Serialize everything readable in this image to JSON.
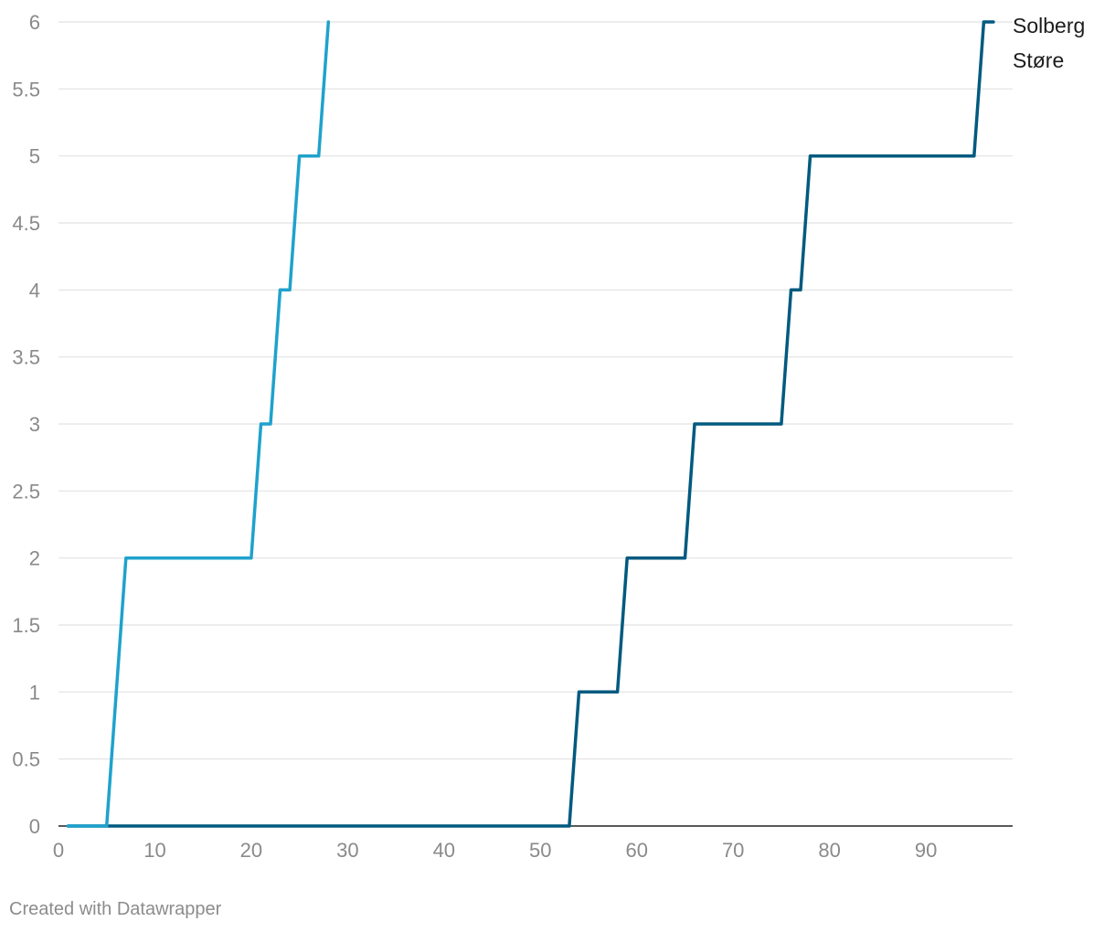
{
  "chart_data": {
    "type": "line",
    "step": true,
    "xlim": [
      0,
      99
    ],
    "ylim": [
      0,
      6
    ],
    "xticks": [
      0,
      10,
      20,
      30,
      40,
      50,
      60,
      70,
      80,
      90
    ],
    "yticks": [
      0,
      0.5,
      1,
      1.5,
      2,
      2.5,
      3,
      3.5,
      4,
      4.5,
      5,
      5.5,
      6
    ],
    "grid": true,
    "legend_position": "right",
    "series": [
      {
        "name": "Solberg",
        "color": "#005a7f",
        "x": [
          1,
          53,
          54,
          58,
          59,
          65,
          66,
          75,
          76,
          77,
          78,
          95,
          96,
          97
        ],
        "y": [
          0,
          0,
          1,
          1,
          2,
          2,
          3,
          3,
          4,
          4,
          5,
          5,
          6,
          6
        ]
      },
      {
        "name": "Støre",
        "color": "#1fa2cc",
        "x": [
          1,
          5,
          7,
          20,
          21,
          22,
          23,
          24,
          25,
          27,
          28
        ],
        "y": [
          0,
          0,
          2,
          2,
          3,
          3,
          4,
          4,
          5,
          5,
          6
        ]
      }
    ]
  },
  "footer": {
    "credit": "Created with Datawrapper"
  }
}
